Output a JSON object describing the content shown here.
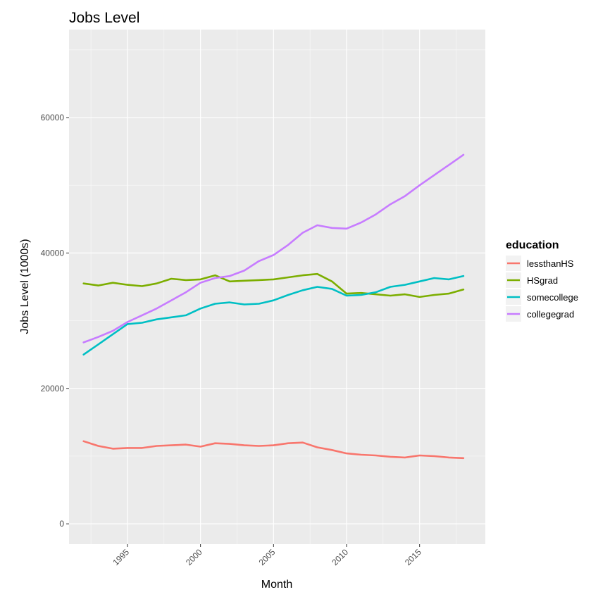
{
  "chart_data": {
    "type": "line",
    "title": "Jobs Level",
    "xlabel": "Month",
    "ylabel": "Jobs Level (1000s)",
    "xlim": [
      1991.0,
      2019.5
    ],
    "ylim": [
      -3000,
      73000
    ],
    "x_ticks": [
      1995,
      2000,
      2005,
      2010,
      2015
    ],
    "y_ticks": [
      0,
      20000,
      40000,
      60000
    ],
    "grid": true,
    "legend": {
      "title": "education",
      "placement": "right",
      "entries": [
        "lessthanHS",
        "HSgrad",
        "somecollege",
        "collegegrad"
      ]
    },
    "x": [
      1992.0,
      1993.0,
      1994.0,
      1995.0,
      1996.0,
      1997.0,
      1998.0,
      1999.0,
      2000.0,
      2001.0,
      2002.0,
      2003.0,
      2004.0,
      2005.0,
      2006.0,
      2007.0,
      2008.0,
      2009.0,
      2010.0,
      2011.0,
      2012.0,
      2013.0,
      2014.0,
      2015.0,
      2016.0,
      2017.0,
      2018.0
    ],
    "series": [
      {
        "name": "lessthanHS",
        "color": "#F8766D",
        "values": [
          12200,
          11500,
          11100,
          11200,
          11200,
          11500,
          11600,
          11700,
          11400,
          11900,
          11800,
          11600,
          11500,
          11600,
          11900,
          12000,
          11300,
          10900,
          10400,
          10200,
          10100,
          9900,
          9800,
          10100,
          10000,
          9800,
          9700
        ]
      },
      {
        "name": "HSgrad",
        "color": "#7CAE00",
        "values": [
          35500,
          35200,
          35600,
          35300,
          35100,
          35500,
          36200,
          36000,
          36100,
          36700,
          35800,
          35900,
          36000,
          36100,
          36400,
          36700,
          36900,
          35800,
          34000,
          34100,
          33900,
          33700,
          33900,
          33500,
          33800,
          34000,
          34600
        ]
      },
      {
        "name": "somecollege",
        "color": "#00BFC4",
        "values": [
          25000,
          26500,
          28000,
          29500,
          29700,
          30200,
          30500,
          30800,
          31800,
          32500,
          32700,
          32400,
          32500,
          33000,
          33800,
          34500,
          35000,
          34700,
          33700,
          33800,
          34200,
          35000,
          35300,
          35800,
          36300,
          36100,
          36600
        ]
      },
      {
        "name": "collegegrad",
        "color": "#C77CFF",
        "values": [
          26800,
          27600,
          28500,
          29800,
          30800,
          31800,
          33000,
          34200,
          35600,
          36300,
          36600,
          37400,
          38800,
          39700,
          41200,
          43000,
          44100,
          43700,
          43600,
          44500,
          45700,
          47200,
          48400,
          50000,
          51500,
          53000,
          54500
        ]
      }
    ]
  }
}
